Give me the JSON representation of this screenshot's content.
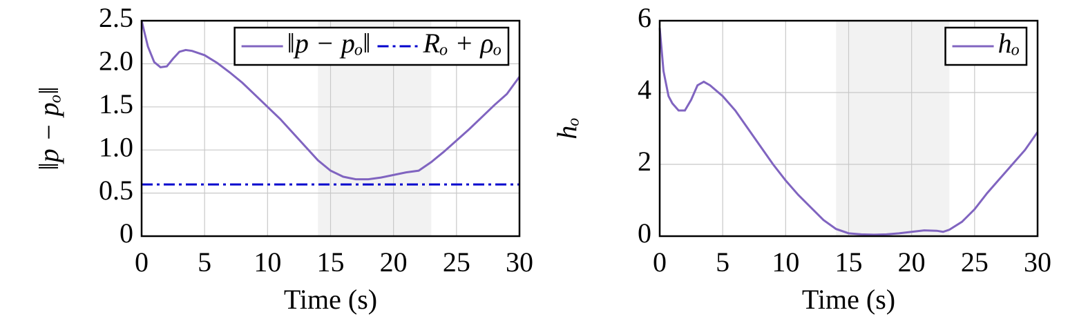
{
  "chart_data": [
    {
      "type": "line",
      "xlabel": "Time (s)",
      "ylabel": "‖p − pₒ‖",
      "xlim": [
        0,
        30
      ],
      "xticks": [
        0,
        5,
        10,
        15,
        20,
        25,
        30
      ],
      "ylim": [
        0,
        2.5
      ],
      "yticks": [
        0,
        0.5,
        {
          "value": 1,
          "label": "1.0"
        },
        1.5,
        {
          "value": 2,
          "label": "2.0"
        },
        2.5
      ],
      "grid": true,
      "legend": "upper right",
      "shade": [
        14,
        23
      ],
      "series": [
        {
          "name": "‖p − pₒ‖",
          "color": "#8064c0",
          "style": "solid",
          "x": [
            0,
            0.5,
            1,
            1.5,
            2,
            2.5,
            3,
            3.5,
            4,
            5,
            6,
            7,
            8,
            9,
            10,
            11,
            12,
            13,
            14,
            15,
            16,
            17,
            18,
            19,
            20,
            21,
            22,
            23,
            24,
            25,
            26,
            27,
            28,
            29,
            30
          ],
          "values": [
            2.5,
            2.2,
            2.02,
            1.96,
            1.97,
            2.06,
            2.14,
            2.16,
            2.15,
            2.1,
            2.01,
            1.9,
            1.78,
            1.64,
            1.5,
            1.36,
            1.2,
            1.04,
            0.88,
            0.76,
            0.69,
            0.66,
            0.66,
            0.68,
            0.71,
            0.74,
            0.76,
            0.86,
            0.98,
            1.11,
            1.24,
            1.38,
            1.52,
            1.65,
            1.85
          ]
        },
        {
          "name": "Rₒ + ρₒ",
          "color": "#0000cd",
          "style": "dashdot",
          "x": [
            0,
            30
          ],
          "values": [
            0.6,
            0.6
          ]
        }
      ]
    },
    {
      "type": "line",
      "xlabel": "Time (s)",
      "ylabel": "hₒ",
      "xlim": [
        0,
        30
      ],
      "xticks": [
        0,
        5,
        10,
        15,
        20,
        25,
        30
      ],
      "ylim": [
        0,
        6
      ],
      "yticks": [
        0,
        2,
        4,
        6
      ],
      "grid": true,
      "legend": "upper right",
      "shade": [
        14,
        23
      ],
      "series": [
        {
          "name": "hₒ",
          "color": "#8064c0",
          "style": "solid",
          "x": [
            0,
            0.3,
            0.7,
            1,
            1.5,
            2,
            2.5,
            3,
            3.5,
            4,
            5,
            6,
            7,
            8,
            9,
            10,
            11,
            12,
            13,
            14,
            15,
            16,
            17,
            18,
            19,
            20,
            21,
            22,
            22.5,
            23,
            24,
            25,
            26,
            27,
            28,
            29,
            30
          ],
          "values": [
            5.8,
            4.6,
            3.9,
            3.7,
            3.5,
            3.5,
            3.8,
            4.2,
            4.3,
            4.2,
            3.9,
            3.5,
            3.0,
            2.5,
            2.0,
            1.55,
            1.15,
            0.8,
            0.45,
            0.2,
            0.08,
            0.05,
            0.04,
            0.05,
            0.08,
            0.12,
            0.16,
            0.15,
            0.12,
            0.18,
            0.4,
            0.75,
            1.2,
            1.6,
            2.0,
            2.4,
            2.9
          ]
        }
      ]
    }
  ]
}
